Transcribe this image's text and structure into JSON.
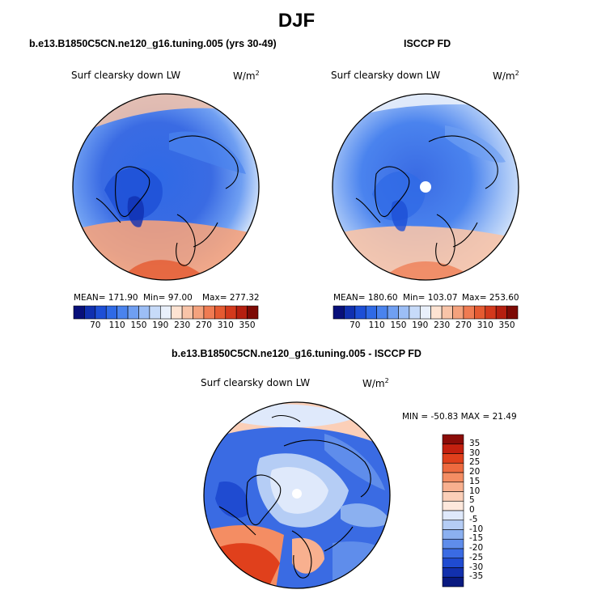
{
  "title": "DJF",
  "panels": [
    {
      "subtitle": "b.e13.B1850C5CN.ne120_g16.tuning.005 (yrs 30-49)",
      "variable": "Surf clearsky down LW",
      "units": "W/m",
      "units_exp": "2",
      "stats": {
        "mean": "MEAN= 171.90",
        "min": "Min=  97.00",
        "max": "Max= 277.32"
      }
    },
    {
      "subtitle": "ISCCP FD",
      "variable": "Surf clearsky down LW",
      "units": "W/m",
      "units_exp": "2",
      "stats": {
        "mean": "MEAN= 180.60",
        "min": "Min= 103.07",
        "max": "Max= 253.60"
      }
    }
  ],
  "colorbar_h": {
    "labels": [
      "70",
      "110",
      "150",
      "190",
      "230",
      "270",
      "310",
      "350"
    ],
    "colors": [
      "#08107a",
      "#1030b0",
      "#1d4fd6",
      "#2f6ae6",
      "#4a83ee",
      "#6f9ff2",
      "#9cbef6",
      "#c7dbf9",
      "#e9f0fb",
      "#fde3d2",
      "#f8c4a8",
      "#f4a27d",
      "#ef7b52",
      "#e55a31",
      "#d3391c",
      "#b51f0f",
      "#7d0a05"
    ]
  },
  "diff": {
    "subtitle": "b.e13.B1850C5CN.ne120_g16.tuning.005 - ISCCP FD",
    "variable": "Surf clearsky down LW",
    "units": "W/m",
    "units_exp": "2",
    "minmax": "MIN = -50.83 MAX =  21.49",
    "colorbar_labels": [
      "35",
      "30",
      "25",
      "20",
      "15",
      "10",
      "5",
      "0",
      "-5",
      "-10",
      "-15",
      "-20",
      "-25",
      "-30",
      "-35"
    ],
    "colorbar_colors": [
      "#8b0c08",
      "#c4200f",
      "#e0401c",
      "#ee6a3f",
      "#f48d63",
      "#f8b08f",
      "#fbcfb8",
      "#fde8dc",
      "#dfe9fb",
      "#b5cdf5",
      "#8bb0f0",
      "#5f8deb",
      "#3a6be3",
      "#1f4bd1",
      "#1230ad",
      "#091a80"
    ]
  },
  "colors": {
    "cold_deep": "#1f4bd1",
    "cold": "#3a6be3",
    "cool": "#7aa4f0",
    "mild": "#c7dbf9",
    "warm": "#f8b08f",
    "hot": "#e0401c"
  }
}
